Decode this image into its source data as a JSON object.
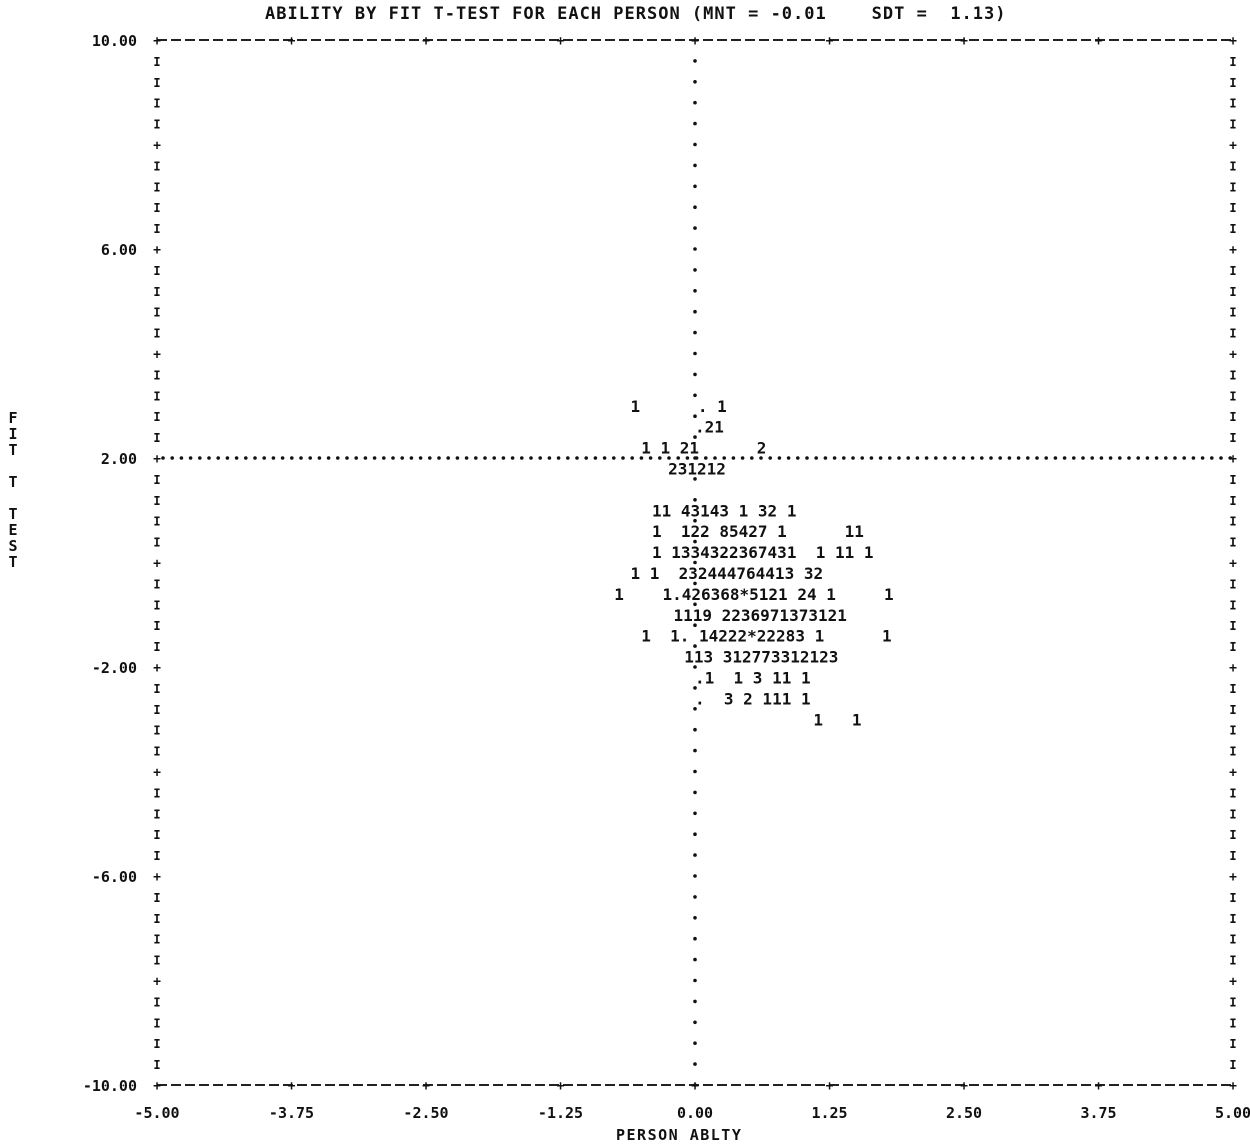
{
  "chart_data": {
    "type": "scatter",
    "title": "ABILITY BY FIT T-TEST FOR EACH PERSON (MNT = -0.01    SDT =  1.13)",
    "xlabel": "PERSON ABLTY",
    "ylabel": "FIT T TEST",
    "xlim": [
      -5.0,
      5.0
    ],
    "ylim": [
      -10.0,
      10.0
    ],
    "x_ticks": [
      "-5.00",
      "-3.75",
      "-2.50",
      "-1.25",
      "0.00",
      "1.25",
      "2.50",
      "3.75",
      "5.00"
    ],
    "y_ticks": [
      "10.00",
      "6.00",
      "2.00",
      "-2.00",
      "-6.00",
      "-10.00"
    ],
    "reference_lines": {
      "x": 0.0,
      "y": 2.0
    },
    "grid": false,
    "plot_rows": [
      {
        "y": 3.0,
        "x0": -0.6,
        "text": "1      . 1"
      },
      {
        "y": 2.6,
        "x0": 0.0,
        "text": ".21"
      },
      {
        "y": 2.2,
        "x0": -0.5,
        "text": "1 1 21      2"
      },
      {
        "y": 1.8,
        "x0": -0.25,
        "text": "231212"
      },
      {
        "y": 1.0,
        "x0": -0.4,
        "text": "11 43143 1 32 1"
      },
      {
        "y": 0.6,
        "x0": -0.4,
        "text": "1  122 85427 1      11"
      },
      {
        "y": 0.2,
        "x0": -0.4,
        "text": "1 1334322367431  1 11 1"
      },
      {
        "y": -0.2,
        "x0": -0.6,
        "text": "1 1  232444764413 32"
      },
      {
        "y": -0.6,
        "x0": -0.75,
        "text": "1    1.426368*5121 24 1     1"
      },
      {
        "y": -1.0,
        "x0": -0.2,
        "text": "1119 2236971373121"
      },
      {
        "y": -1.4,
        "x0": -0.5,
        "text": "1  1. 14222*22283 1      1"
      },
      {
        "y": -1.8,
        "x0": -0.1,
        "text": "113 312773312123"
      },
      {
        "y": -2.2,
        "x0": 0.0,
        "text": ".1  1 3 11 1"
      },
      {
        "y": -2.6,
        "x0": 0.0,
        "text": ".  3 2 111 1"
      },
      {
        "y": -3.0,
        "x0": 1.1,
        "text": "1   1"
      }
    ]
  }
}
